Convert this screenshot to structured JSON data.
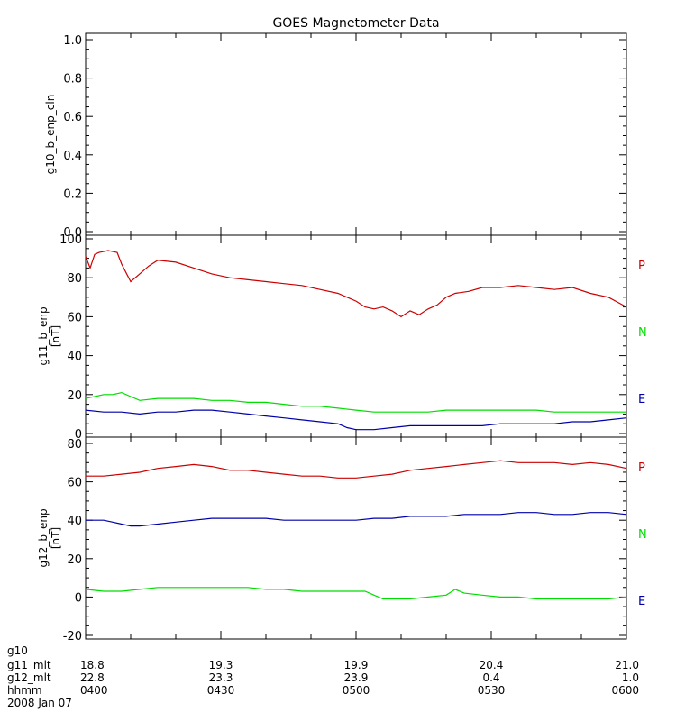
{
  "title": "GOES Magnetometer Data",
  "colors": {
    "P": "#cc0000",
    "N": "#00dd00",
    "E": "#0000aa",
    "frame": "#000000"
  },
  "chart_data": [
    {
      "type": "line",
      "ylabel": "g10_b_enp_cln",
      "unit": "",
      "ylim": [
        0.0,
        1.0
      ],
      "yticks": [
        "0.0",
        "0.2",
        "0.4",
        "0.6",
        "0.8",
        "1.0"
      ],
      "ytick_values": [
        0.0,
        0.2,
        0.4,
        0.6,
        0.8,
        1.0
      ],
      "series": []
    },
    {
      "type": "line",
      "ylabel": "g11_b_enp",
      "unit": "[nT]",
      "ylim": [
        0,
        100
      ],
      "yticks": [
        "0",
        "20",
        "40",
        "60",
        "80",
        "100"
      ],
      "ytick_values": [
        0,
        20,
        40,
        60,
        80,
        100
      ],
      "series": [
        {
          "name": "P",
          "color": "#cc0000",
          "x": [
            0,
            1,
            2,
            3,
            5,
            7,
            8,
            10,
            12,
            14,
            16,
            20,
            24,
            28,
            32,
            36,
            40,
            44,
            48,
            52,
            56,
            60,
            62,
            64,
            66,
            68,
            70,
            72,
            74,
            76,
            78,
            80,
            82,
            85,
            88,
            92,
            96,
            100,
            104,
            108,
            112,
            116,
            120
          ],
          "values": [
            91,
            85,
            92,
            93,
            94,
            93,
            87,
            78,
            82,
            86,
            89,
            88,
            85,
            82,
            80,
            79,
            78,
            77,
            76,
            74,
            72,
            68,
            65,
            64,
            65,
            63,
            60,
            63,
            61,
            64,
            66,
            70,
            72,
            73,
            75,
            75,
            76,
            75,
            74,
            75,
            72,
            70,
            65
          ]
        },
        {
          "name": "N",
          "color": "#00dd00",
          "x": [
            0,
            2,
            4,
            6,
            8,
            10,
            12,
            16,
            20,
            24,
            28,
            32,
            36,
            40,
            44,
            48,
            52,
            56,
            60,
            64,
            68,
            72,
            76,
            80,
            84,
            88,
            92,
            96,
            100,
            104,
            108,
            112,
            116,
            120
          ],
          "values": [
            18,
            19,
            20,
            20,
            21,
            19,
            17,
            18,
            18,
            18,
            17,
            17,
            16,
            16,
            15,
            14,
            14,
            13,
            12,
            11,
            11,
            11,
            11,
            12,
            12,
            12,
            12,
            12,
            12,
            11,
            11,
            11,
            11,
            11
          ]
        },
        {
          "name": "E",
          "color": "#0000aa",
          "x": [
            0,
            4,
            8,
            12,
            16,
            20,
            24,
            28,
            32,
            36,
            40,
            44,
            48,
            52,
            56,
            58,
            60,
            62,
            64,
            68,
            72,
            76,
            80,
            84,
            88,
            92,
            96,
            100,
            104,
            108,
            112,
            116,
            120
          ],
          "values": [
            12,
            11,
            11,
            10,
            11,
            11,
            12,
            12,
            11,
            10,
            9,
            8,
            7,
            6,
            5,
            3,
            2,
            2,
            2,
            3,
            4,
            4,
            4,
            4,
            4,
            5,
            5,
            5,
            5,
            6,
            6,
            7,
            8
          ]
        }
      ]
    },
    {
      "type": "line",
      "ylabel": "g12_b_enp",
      "unit": "[nT]",
      "ylim": [
        -20,
        80
      ],
      "yticks": [
        "-20",
        "0",
        "20",
        "40",
        "60",
        "80"
      ],
      "ytick_values": [
        -20,
        0,
        20,
        40,
        60,
        80
      ],
      "series": [
        {
          "name": "P",
          "color": "#cc0000",
          "x": [
            0,
            4,
            8,
            12,
            16,
            20,
            24,
            28,
            32,
            36,
            40,
            44,
            48,
            52,
            56,
            60,
            64,
            68,
            72,
            76,
            80,
            84,
            88,
            92,
            96,
            100,
            104,
            108,
            112,
            116,
            120
          ],
          "values": [
            63,
            63,
            64,
            65,
            67,
            68,
            69,
            68,
            66,
            66,
            65,
            64,
            63,
            63,
            62,
            62,
            63,
            64,
            66,
            67,
            68,
            69,
            70,
            71,
            70,
            70,
            70,
            69,
            70,
            69,
            67
          ]
        },
        {
          "name": "N",
          "color": "#00dd00",
          "x": [
            0,
            4,
            8,
            12,
            16,
            20,
            24,
            28,
            32,
            36,
            40,
            44,
            48,
            52,
            56,
            60,
            62,
            64,
            66,
            68,
            72,
            76,
            80,
            82,
            84,
            88,
            92,
            96,
            100,
            104,
            108,
            112,
            116,
            120
          ],
          "values": [
            4,
            3,
            3,
            4,
            5,
            5,
            5,
            5,
            5,
            5,
            4,
            4,
            3,
            3,
            3,
            3,
            3,
            1,
            -1,
            -1,
            -1,
            0,
            1,
            4,
            2,
            1,
            0,
            0,
            -1,
            -1,
            -1,
            -1,
            -1,
            0
          ]
        },
        {
          "name": "E",
          "color": "#0000aa",
          "x": [
            0,
            4,
            6,
            8,
            10,
            12,
            16,
            20,
            24,
            28,
            32,
            36,
            40,
            44,
            48,
            52,
            56,
            60,
            64,
            68,
            72,
            76,
            80,
            84,
            88,
            92,
            96,
            100,
            104,
            108,
            112,
            116,
            120
          ],
          "values": [
            40,
            40,
            39,
            38,
            37,
            37,
            38,
            39,
            40,
            41,
            41,
            41,
            41,
            40,
            40,
            40,
            40,
            40,
            41,
            41,
            42,
            42,
            42,
            43,
            43,
            43,
            44,
            44,
            43,
            43,
            44,
            44,
            43
          ]
        }
      ]
    }
  ],
  "footer": {
    "row_labels": [
      "g10",
      "g11_mlt",
      "g12_mlt",
      "hhmm"
    ],
    "date": "2008 Jan 07",
    "ticks": [
      {
        "x": 0,
        "g11_mlt": "18.8",
        "g12_mlt": "22.8",
        "hhmm": "0400"
      },
      {
        "x": 30,
        "g11_mlt": "19.3",
        "g12_mlt": "23.3",
        "hhmm": "0430"
      },
      {
        "x": 60,
        "g11_mlt": "19.9",
        "g12_mlt": "23.9",
        "hhmm": "0500"
      },
      {
        "x": 90,
        "g11_mlt": "20.4",
        "g12_mlt": "0.4",
        "hhmm": "0530"
      },
      {
        "x": 120,
        "g11_mlt": "21.0",
        "g12_mlt": "1.0",
        "hhmm": "0600"
      }
    ]
  }
}
